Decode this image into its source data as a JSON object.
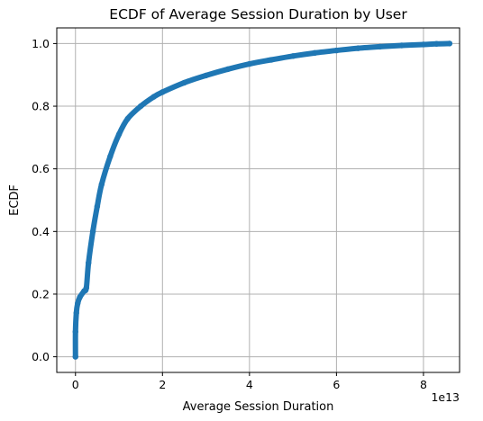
{
  "chart_data": {
    "type": "scatter",
    "title": "ECDF of Average Session Duration by User",
    "xlabel": "Average Session Duration",
    "ylabel": "ECDF",
    "x_offset_label": "1e13",
    "x_scale": 10000000000000.0,
    "xlim": [
      -0.43,
      8.83
    ],
    "ylim": [
      -0.05,
      1.05
    ],
    "xticks": [
      0,
      2,
      4,
      6,
      8
    ],
    "xtick_labels": [
      "0",
      "2",
      "4",
      "6",
      "8"
    ],
    "yticks": [
      0.0,
      0.2,
      0.4,
      0.6,
      0.8,
      1.0
    ],
    "ytick_labels": [
      "0.0",
      "0.2",
      "0.4",
      "0.6",
      "0.8",
      "1.0"
    ],
    "grid": true,
    "series": [
      {
        "color": "#1f77b4",
        "x": [
          0,
          0.0,
          0.02,
          0.05,
          0.1,
          0.2,
          0.25,
          0.3,
          0.4,
          0.5,
          0.6,
          0.8,
          1.0,
          1.2,
          1.5,
          1.8,
          2.0,
          2.5,
          3.0,
          3.5,
          4.0,
          4.5,
          5.0,
          5.5,
          6.0,
          6.5,
          7.0,
          7.5,
          8.0,
          8.3,
          8.6
        ],
        "y": [
          0.0,
          0.08,
          0.14,
          0.17,
          0.19,
          0.21,
          0.22,
          0.3,
          0.4,
          0.48,
          0.55,
          0.64,
          0.71,
          0.76,
          0.8,
          0.83,
          0.845,
          0.875,
          0.898,
          0.918,
          0.935,
          0.948,
          0.96,
          0.97,
          0.978,
          0.985,
          0.99,
          0.994,
          0.997,
          0.999,
          1.0
        ]
      }
    ]
  }
}
